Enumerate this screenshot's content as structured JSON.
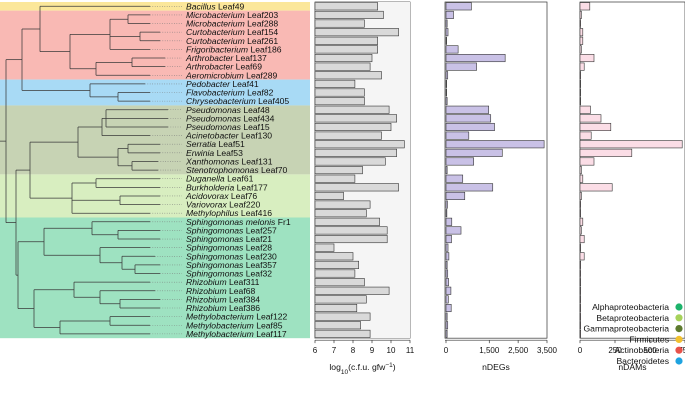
{
  "chart_data": {
    "type": "bar",
    "description_rows": [
      {
        "genus": "Bacillus",
        "strain": "Leaf49",
        "group": "Firmicutes",
        "cfu": 9.3,
        "ndegs": 880,
        "ndams": 70
      },
      {
        "genus": "Microbacterium",
        "strain": "Leaf203",
        "group": "Actinobacteria",
        "cfu": 9.6,
        "ndegs": 260,
        "ndams": 10
      },
      {
        "genus": "Microbacterium",
        "strain": "Leaf288",
        "group": "Actinobacteria",
        "cfu": 8.6,
        "ndegs": 40,
        "ndams": 5
      },
      {
        "genus": "Curtobacterium",
        "strain": "Leaf154",
        "group": "Actinobacteria",
        "cfu": 10.4,
        "ndegs": 70,
        "ndams": 20
      },
      {
        "genus": "Curtobacterium",
        "strain": "Leaf261",
        "group": "Actinobacteria",
        "cfu": 9.3,
        "ndegs": 20,
        "ndams": 20
      },
      {
        "genus": "Frigoribacterium",
        "strain": "Leaf186",
        "group": "Actinobacteria",
        "cfu": 9.3,
        "ndegs": 420,
        "ndams": 10
      },
      {
        "genus": "Arthrobacter",
        "strain": "Leaf137",
        "group": "Actinobacteria",
        "cfu": 9.0,
        "ndegs": 2050,
        "ndams": 100
      },
      {
        "genus": "Arthrobacter",
        "strain": "Leaf69",
        "group": "Actinobacteria",
        "cfu": 8.9,
        "ndegs": 1060,
        "ndams": 30
      },
      {
        "genus": "Aeromicrobium",
        "strain": "Leaf289",
        "group": "Actinobacteria",
        "cfu": 9.5,
        "ndegs": 60,
        "ndams": 5
      },
      {
        "genus": "Pedobacter",
        "strain": "Leaf41",
        "group": "Bacteroidetes",
        "cfu": 8.1,
        "ndegs": 10,
        "ndams": 0
      },
      {
        "genus": "Flavobacterium",
        "strain": "Leaf82",
        "group": "Bacteroidetes",
        "cfu": 8.6,
        "ndegs": 20,
        "ndams": 0
      },
      {
        "genus": "Chryseobacterium",
        "strain": "Leaf405",
        "group": "Bacteroidetes",
        "cfu": 8.6,
        "ndegs": 40,
        "ndams": 0
      },
      {
        "genus": "Pseudomonas",
        "strain": "Leaf48",
        "group": "Gammaproteobacteria",
        "cfu": 9.9,
        "ndegs": 1480,
        "ndams": 75
      },
      {
        "genus": "Pseudomonas",
        "strain": "Leaf434",
        "group": "Gammaproteobacteria",
        "cfu": 10.3,
        "ndegs": 1550,
        "ndams": 150
      },
      {
        "genus": "Pseudomonas",
        "strain": "Leaf15",
        "group": "Gammaproteobacteria",
        "cfu": 10.0,
        "ndegs": 1680,
        "ndams": 220
      },
      {
        "genus": "Acinetobacter",
        "strain": "Leaf130",
        "group": "Gammaproteobacteria",
        "cfu": 9.5,
        "ndegs": 790,
        "ndams": 80
      },
      {
        "genus": "Serratia",
        "strain": "Leaf51",
        "group": "Gammaproteobacteria",
        "cfu": 10.7,
        "ndegs": 3400,
        "ndams": 730
      },
      {
        "genus": "Erwinia",
        "strain": "Leaf53",
        "group": "Gammaproteobacteria",
        "cfu": 10.3,
        "ndegs": 1950,
        "ndams": 370
      },
      {
        "genus": "Xanthomonas",
        "strain": "Leaf131",
        "group": "Gammaproteobacteria",
        "cfu": 9.7,
        "ndegs": 960,
        "ndams": 100
      },
      {
        "genus": "Stenotrophomonas",
        "strain": "Leaf70",
        "group": "Gammaproteobacteria",
        "cfu": 8.5,
        "ndegs": 40,
        "ndams": 10
      },
      {
        "genus": "Duganella",
        "strain": "Leaf61",
        "group": "Betaproteobacteria",
        "cfu": 8.1,
        "ndegs": 580,
        "ndams": 20
      },
      {
        "genus": "Burkholderia",
        "strain": "Leaf177",
        "group": "Betaproteobacteria",
        "cfu": 10.4,
        "ndegs": 1620,
        "ndams": 230
      },
      {
        "genus": "Acidovorax",
        "strain": "Leaf76",
        "group": "Betaproteobacteria",
        "cfu": 7.5,
        "ndegs": 650,
        "ndams": 10
      },
      {
        "genus": "Variovorax",
        "strain": "Leaf220",
        "group": "Betaproteobacteria",
        "cfu": 8.9,
        "ndegs": 50,
        "ndams": 5
      },
      {
        "genus": "Methylophilus",
        "strain": "Leaf416",
        "group": "Betaproteobacteria",
        "cfu": 8.7,
        "ndegs": 30,
        "ndams": 5
      },
      {
        "genus": "Sphingomonas melonis",
        "strain": "Fr1",
        "group": "Alphaproteobacteria",
        "cfu": 9.4,
        "ndegs": 200,
        "ndams": 20
      },
      {
        "genus": "Sphingomonas",
        "strain": "Leaf257",
        "group": "Alphaproteobacteria",
        "cfu": 9.8,
        "ndegs": 520,
        "ndams": 10
      },
      {
        "genus": "Sphingomonas",
        "strain": "Leaf21",
        "group": "Alphaproteobacteria",
        "cfu": 9.8,
        "ndegs": 190,
        "ndams": 30
      },
      {
        "genus": "Sphingomonas",
        "strain": "Leaf28",
        "group": "Alphaproteobacteria",
        "cfu": 7.0,
        "ndegs": 70,
        "ndams": 5
      },
      {
        "genus": "Sphingomonas",
        "strain": "Leaf230",
        "group": "Alphaproteobacteria",
        "cfu": 8.0,
        "ndegs": 100,
        "ndams": 30
      },
      {
        "genus": "Sphingomonas",
        "strain": "Leaf357",
        "group": "Alphaproteobacteria",
        "cfu": 8.3,
        "ndegs": 40,
        "ndams": 5
      },
      {
        "genus": "Sphingomonas",
        "strain": "Leaf32",
        "group": "Alphaproteobacteria",
        "cfu": 8.1,
        "ndegs": 60,
        "ndams": 5
      },
      {
        "genus": "Rhizobium",
        "strain": "Leaf311",
        "group": "Alphaproteobacteria",
        "cfu": 8.6,
        "ndegs": 90,
        "ndams": 5
      },
      {
        "genus": "Rhizobium",
        "strain": "Leaf68",
        "group": "Alphaproteobacteria",
        "cfu": 9.9,
        "ndegs": 170,
        "ndams": 5
      },
      {
        "genus": "Rhizobium",
        "strain": "Leaf384",
        "group": "Alphaproteobacteria",
        "cfu": 8.7,
        "ndegs": 80,
        "ndams": 5
      },
      {
        "genus": "Rhizobium",
        "strain": "Leaf386",
        "group": "Alphaproteobacteria",
        "cfu": 8.2,
        "ndegs": 180,
        "ndams": 5
      },
      {
        "genus": "Methylobacterium",
        "strain": "Leaf122",
        "group": "Alphaproteobacteria",
        "cfu": 8.9,
        "ndegs": 40,
        "ndams": 5
      },
      {
        "genus": "Methylobacterium",
        "strain": "Leaf85",
        "group": "Alphaproteobacteria",
        "cfu": 8.4,
        "ndegs": 60,
        "ndams": 5
      },
      {
        "genus": "Methylobacterium",
        "strain": "Leaf117",
        "group": "Alphaproteobacteria",
        "cfu": 8.9,
        "ndegs": 40,
        "ndams": 5
      }
    ],
    "panels": [
      {
        "key": "cfu",
        "xlabel_pre": "log",
        "xlabel_sub": "10",
        "xlabel_post": "(c.f.u. gfw",
        "xlabel_sup": "−1",
        "xlabel_end": ")",
        "xlim": [
          6,
          11
        ],
        "ticks": [
          "6",
          "7",
          "8",
          "9",
          "10",
          "11"
        ],
        "tick_values": [
          6,
          7,
          8,
          9,
          10,
          11
        ]
      },
      {
        "key": "ndegs",
        "xlabel": "nDEGs",
        "xlim": [
          0,
          3500
        ],
        "ticks": [
          "0",
          "1,500",
          "2,500",
          "3,500"
        ],
        "tick_values": [
          0,
          1500,
          2500,
          3500
        ]
      },
      {
        "key": "ndams",
        "xlabel": "nDAMs",
        "xlim": [
          0,
          750
        ],
        "ticks": [
          "0",
          "250",
          "500",
          "750"
        ],
        "tick_values": [
          0,
          250,
          500,
          750
        ]
      }
    ],
    "legend": {
      "position": "bottom-right",
      "items": [
        {
          "label": "Alphaproteobacteria",
          "color": "#1db36b"
        },
        {
          "label": "Betaproteobacteria",
          "color": "#a6d25a"
        },
        {
          "label": "Gammaproteobacteria",
          "color": "#5d7a2e"
        },
        {
          "label": "Firmicutes",
          "color": "#f2c12e"
        },
        {
          "label": "Actinobacteria",
          "color": "#e8524a"
        },
        {
          "label": "Bacteroidetes",
          "color": "#1fa3e0"
        }
      ]
    },
    "group_backgrounds": {
      "Firmicutes": "#fbe79a",
      "Actinobacteria": "#f9b9b4",
      "Bacteroidetes": "#a8daf5",
      "Gammaproteobacteria": "#c7d3b4",
      "Betaproteobacteria": "#d8eec0",
      "Alphaproteobacteria": "#9ee2c1"
    },
    "bar_colors": {
      "cfu": "#d9d9d9",
      "ndegs": "#c9c1e6",
      "ndams": "#fbdde6"
    }
  }
}
